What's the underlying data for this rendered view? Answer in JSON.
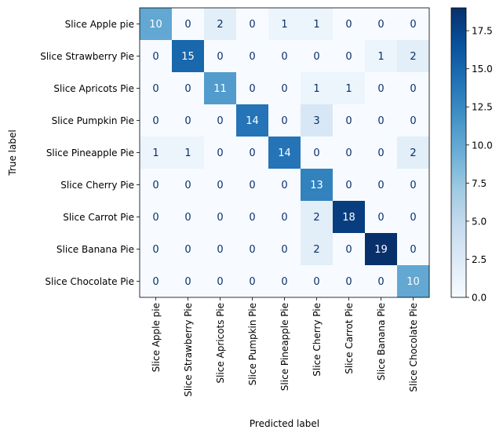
{
  "chart_data": {
    "type": "heatmap",
    "title": "",
    "xlabel": "Predicted label",
    "ylabel": "True label",
    "x_categories": [
      "Slice Apple pie",
      "Slice Strawberry Pie",
      "Slice Apricots Pie",
      "Slice Pumpkin Pie",
      "Slice Pineapple Pie",
      "Slice Cherry Pie",
      "Slice Carrot Pie",
      "Slice Banana Pie",
      "Slice Chocolate Pie"
    ],
    "y_categories": [
      "Slice Apple pie",
      "Slice Strawberry Pie",
      "Slice Apricots Pie",
      "Slice Pumpkin Pie",
      "Slice Pineapple Pie",
      "Slice Cherry Pie",
      "Slice Carrot Pie",
      "Slice Banana Pie",
      "Slice Chocolate Pie"
    ],
    "matrix": [
      [
        10,
        0,
        2,
        0,
        1,
        1,
        0,
        0,
        0
      ],
      [
        0,
        15,
        0,
        0,
        0,
        0,
        0,
        1,
        2
      ],
      [
        0,
        0,
        11,
        0,
        0,
        1,
        1,
        0,
        0
      ],
      [
        0,
        0,
        0,
        14,
        0,
        3,
        0,
        0,
        0
      ],
      [
        1,
        1,
        0,
        0,
        14,
        0,
        0,
        0,
        2
      ],
      [
        0,
        0,
        0,
        0,
        0,
        13,
        0,
        0,
        0
      ],
      [
        0,
        0,
        0,
        0,
        0,
        2,
        18,
        0,
        0
      ],
      [
        0,
        0,
        0,
        0,
        0,
        2,
        0,
        19,
        0
      ],
      [
        0,
        0,
        0,
        0,
        0,
        0,
        0,
        0,
        10
      ]
    ],
    "colormap": "Blues",
    "vmin": 0,
    "vmax": 19,
    "colorbar": {
      "ticks": [
        0.0,
        2.5,
        5.0,
        7.5,
        10.0,
        12.5,
        15.0,
        17.5
      ],
      "tick_labels": [
        "0.0",
        "2.5",
        "5.0",
        "7.5",
        "10.0",
        "12.5",
        "15.0",
        "17.5"
      ]
    },
    "grid": false,
    "legend": "none"
  }
}
